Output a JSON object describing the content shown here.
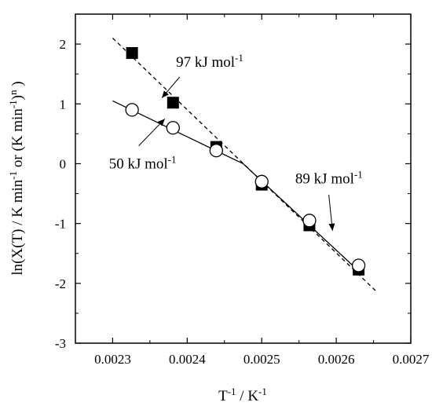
{
  "chart_data": {
    "type": "scatter",
    "xlabel": "T<sup>-1</sup> / K<sup>-1</sup>",
    "xlabel_parts": [
      {
        "t": "T",
        "sup": false
      },
      {
        "t": "-1",
        "sup": true
      },
      {
        "t": " / K",
        "sup": false
      },
      {
        "t": "-1",
        "sup": true
      }
    ],
    "ylabel_parts": [
      {
        "t": "ln(X(T) / K min",
        "sup": false
      },
      {
        "t": "-1",
        "sup": true
      },
      {
        "t": " or (K min",
        "sup": false
      },
      {
        "t": "-1",
        "sup": true
      },
      {
        "t": ")",
        "sup": false
      },
      {
        "t": "n",
        "sup": true
      },
      {
        "t": " )",
        "sup": false
      }
    ],
    "xlim": [
      0.00225,
      0.0027
    ],
    "ylim": [
      -3,
      2.5
    ],
    "xticks": [
      0.0023,
      0.0024,
      0.0025,
      0.0026,
      0.0027
    ],
    "xtick_labels": [
      "0.0023",
      "0.0024",
      "0.0025",
      "0.0026",
      "0.0027"
    ],
    "yticks": [
      -3,
      -2,
      -1,
      0,
      1,
      2
    ],
    "ytick_labels": [
      "-3",
      "-2",
      "-1",
      "0",
      "1",
      "2"
    ],
    "grid": false,
    "series": [
      {
        "marker": "filled-square",
        "x": [
          0.002326,
          0.002381,
          0.002439,
          0.0025,
          0.002564,
          0.00263
        ],
        "y": [
          1.85,
          1.02,
          0.28,
          -0.35,
          -1.03,
          -1.77
        ]
      },
      {
        "marker": "open-circle",
        "x": [
          0.002326,
          0.002381,
          0.002439,
          0.0025,
          0.002564,
          0.00263
        ],
        "y": [
          0.9,
          0.6,
          0.22,
          -0.3,
          -0.95,
          -1.7
        ]
      }
    ],
    "fit_lines": [
      {
        "style": "dashed",
        "x": [
          0.0023,
          0.002655
        ],
        "y": [
          2.1,
          -2.15
        ]
      },
      {
        "style": "solid",
        "x": [
          0.0023,
          0.002475
        ],
        "y": [
          1.05,
          0.0
        ]
      },
      {
        "style": "solid",
        "x": [
          0.002475,
          0.002635
        ],
        "y": [
          0.0,
          -1.85
        ]
      }
    ],
    "annotations": [
      {
        "id": "ann-97",
        "parts": [
          {
            "t": "97 kJ mol",
            "sup": false
          },
          {
            "t": "-1",
            "sup": true
          }
        ],
        "text_x": 0.002385,
        "text_y": 1.7,
        "arrow_from": [
          0.00239,
          1.45
        ],
        "arrow_to": [
          0.002366,
          1.1
        ]
      },
      {
        "id": "ann-50",
        "parts": [
          {
            "t": "50 kJ mol",
            "sup": false
          },
          {
            "t": "-1",
            "sup": true
          }
        ],
        "text_x": 0.002295,
        "text_y": 0.0,
        "arrow_from": [
          0.002335,
          0.3
        ],
        "arrow_to": [
          0.00237,
          0.75
        ]
      },
      {
        "id": "ann-89",
        "parts": [
          {
            "t": "89 kJ mol",
            "sup": false
          },
          {
            "t": "-1",
            "sup": true
          }
        ],
        "text_x": 0.002545,
        "text_y": -0.25,
        "arrow_from": [
          0.00259,
          -0.52
        ],
        "arrow_to": [
          0.002595,
          -1.12
        ]
      }
    ]
  }
}
